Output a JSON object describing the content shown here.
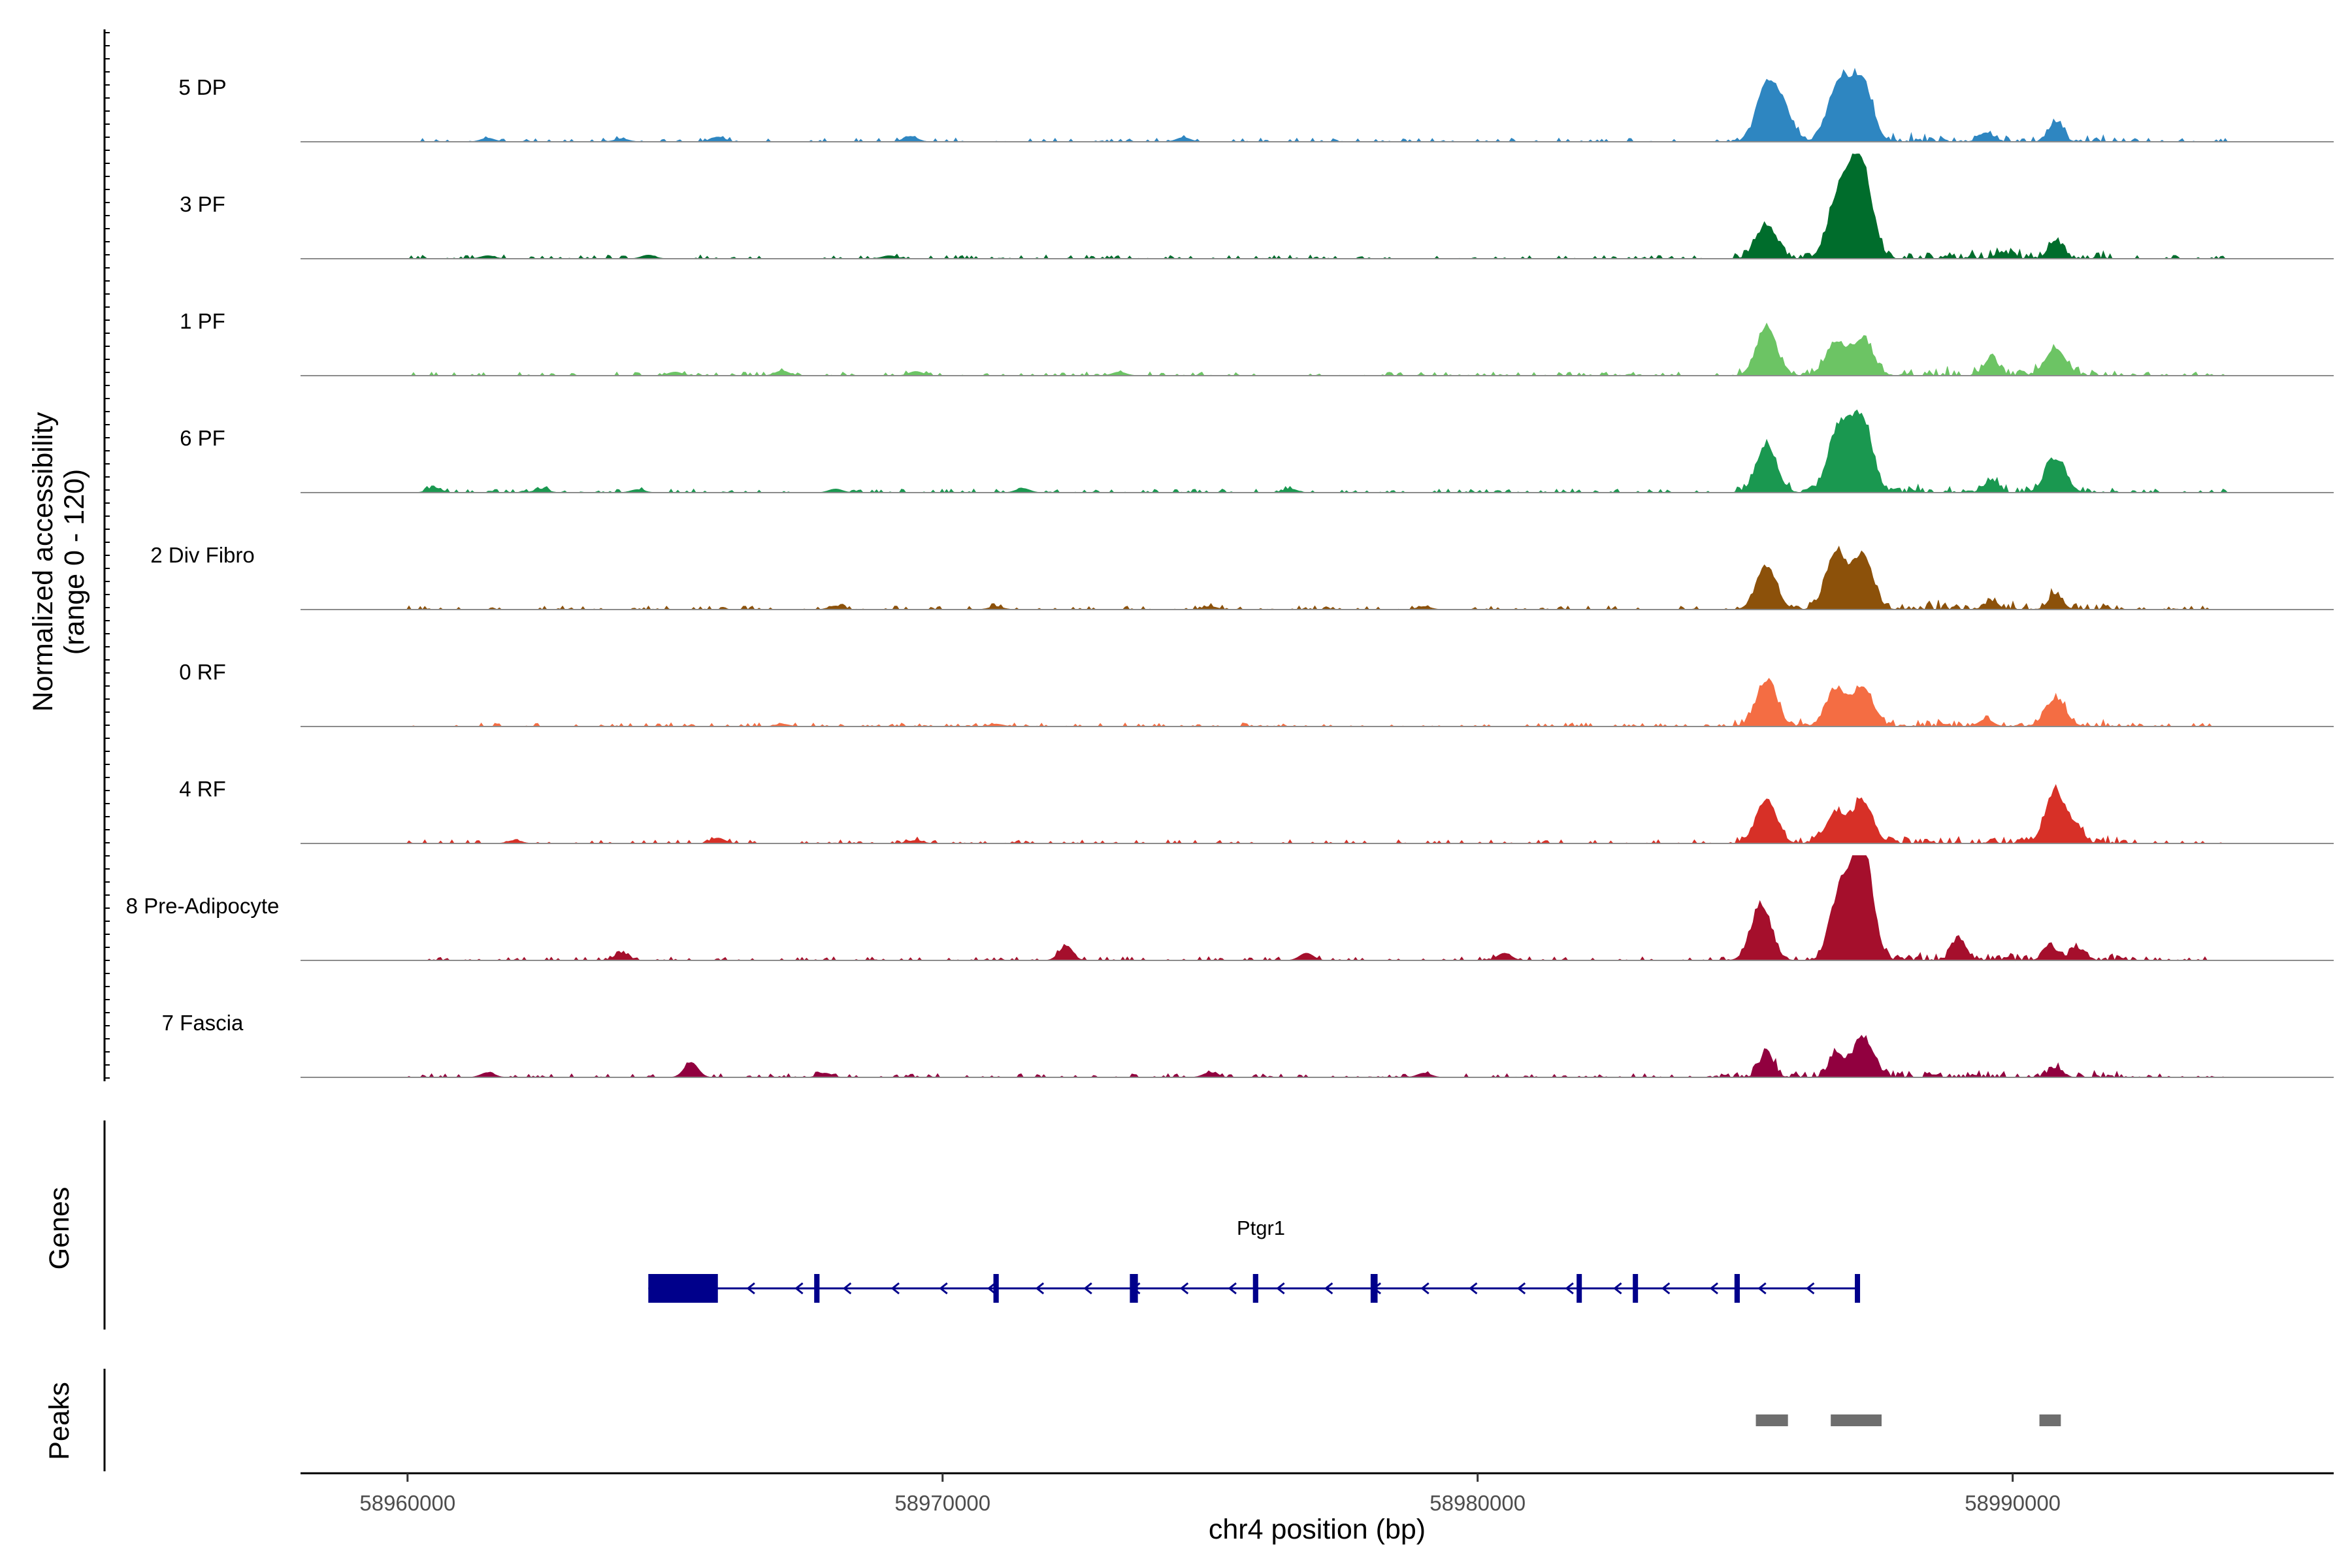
{
  "figure": {
    "y_axis_title_line1": "Normalized accessibility",
    "y_axis_title_line2": "(range 0 - 120)",
    "genes_title": "Genes",
    "peaks_title": "Peaks",
    "x_axis_title": "chr4 position (bp)"
  },
  "chart_data": {
    "type": "area",
    "chromosome": "chr4",
    "xlim": [
      58958000,
      58996000
    ],
    "ylim": [
      0,
      120
    ],
    "x_ticks": [
      58960000,
      58970000,
      58980000,
      58990000
    ],
    "x_tick_labels": [
      "58960000",
      "58970000",
      "58980000",
      "58990000"
    ],
    "xlabel": "chr4 position (bp)",
    "ylabel": "Normalized accessibility (range 0 - 120)",
    "peak_centers": [
      58985300,
      58986750,
      58987200,
      58989600,
      58990800
    ],
    "tracks": [
      {
        "name": "5 DP",
        "color": "#2e86c1",
        "peaks": [
          [
            58985400,
            85
          ],
          [
            58985700,
            50
          ],
          [
            58986700,
            70
          ],
          [
            58987200,
            92
          ],
          [
            58986900,
            45
          ],
          [
            58989500,
            15
          ],
          [
            58990800,
            32
          ],
          [
            58961500,
            6
          ],
          [
            58964000,
            5
          ],
          [
            58965800,
            8
          ],
          [
            58969400,
            9
          ],
          [
            58974500,
            7
          ]
        ]
      },
      {
        "name": "3 PF",
        "color": "#006d2c",
        "peaks": [
          [
            58985400,
            55
          ],
          [
            58986700,
            75
          ],
          [
            58987200,
            130
          ],
          [
            58986950,
            80
          ],
          [
            58990800,
            30
          ],
          [
            58989800,
            10
          ],
          [
            58961500,
            5
          ],
          [
            58964500,
            6
          ],
          [
            58969000,
            5
          ]
        ]
      },
      {
        "name": "1 PF",
        "color": "#6cc464",
        "peaks": [
          [
            58985400,
            78
          ],
          [
            58986700,
            55
          ],
          [
            58987200,
            60
          ],
          [
            58989600,
            30
          ],
          [
            58990800,
            45
          ],
          [
            58965000,
            6
          ],
          [
            58967000,
            8
          ],
          [
            58969500,
            7
          ],
          [
            58973300,
            6
          ]
        ]
      },
      {
        "name": "6 PF",
        "color": "#1a9850",
        "peaks": [
          [
            58985400,
            78
          ],
          [
            58986700,
            75
          ],
          [
            58987200,
            110
          ],
          [
            58986900,
            50
          ],
          [
            58989600,
            20
          ],
          [
            58990800,
            55
          ],
          [
            58960500,
            8
          ],
          [
            58962500,
            6
          ],
          [
            58964300,
            5
          ],
          [
            58968000,
            6
          ],
          [
            58971500,
            7
          ],
          [
            58976500,
            6
          ]
        ]
      },
      {
        "name": "2 Div Fibro",
        "color": "#8c510a",
        "peaks": [
          [
            58985400,
            70
          ],
          [
            58986700,
            95
          ],
          [
            58987200,
            90
          ],
          [
            58989600,
            12
          ],
          [
            58990800,
            25
          ],
          [
            58968000,
            6
          ],
          [
            58971000,
            5
          ],
          [
            58975000,
            5
          ],
          [
            58979000,
            5
          ]
        ]
      },
      {
        "name": "0 RF",
        "color": "#f46d43",
        "peaks": [
          [
            58985400,
            75
          ],
          [
            58986700,
            60
          ],
          [
            58987200,
            65
          ],
          [
            58989500,
            12
          ],
          [
            58990800,
            45
          ],
          [
            58967000,
            4
          ],
          [
            58971000,
            4
          ]
        ]
      },
      {
        "name": "4 RF",
        "color": "#d73027",
        "peaks": [
          [
            58985400,
            72
          ],
          [
            58986700,
            50
          ],
          [
            58987200,
            68
          ],
          [
            58990800,
            85
          ],
          [
            58991200,
            25
          ],
          [
            58965800,
            9
          ],
          [
            58962000,
            5
          ],
          [
            58969500,
            5
          ]
        ]
      },
      {
        "name": "8 Pre-Adipocyte",
        "color": "#a50f2c",
        "peaks": [
          [
            58985300,
            90
          ],
          [
            58986800,
            120
          ],
          [
            58987200,
            180
          ],
          [
            58989000,
            35
          ],
          [
            58990700,
            20
          ],
          [
            58991200,
            20
          ],
          [
            58972300,
            22
          ],
          [
            58964000,
            12
          ],
          [
            58976800,
            12
          ],
          [
            58980500,
            12
          ]
        ]
      },
      {
        "name": "7 Fascia",
        "color": "#91003f",
        "peaks": [
          [
            58985400,
            40
          ],
          [
            58986700,
            40
          ],
          [
            58987200,
            65
          ],
          [
            58965300,
            25
          ],
          [
            58990800,
            15
          ],
          [
            58961500,
            8
          ],
          [
            58967800,
            7
          ],
          [
            58975000,
            8
          ],
          [
            58979000,
            7
          ]
        ]
      }
    ],
    "gene": {
      "name": "Ptgr1",
      "strand": "-",
      "start": 58964500,
      "end": 58987100,
      "exons": [
        [
          58964500,
          58965800
        ],
        [
          58967600,
          58967700
        ],
        [
          58970950,
          58971050
        ],
        [
          58973500,
          58973650
        ],
        [
          58975800,
          58975900
        ],
        [
          58978000,
          58978130
        ],
        [
          58981850,
          58981880
        ],
        [
          58982900,
          58982930
        ],
        [
          58984800,
          58984900
        ],
        [
          58987050,
          58987100
        ]
      ]
    },
    "peak_regions": [
      [
        58985200,
        58985800
      ],
      [
        58986600,
        58987550
      ],
      [
        58990500,
        58990900
      ]
    ]
  }
}
